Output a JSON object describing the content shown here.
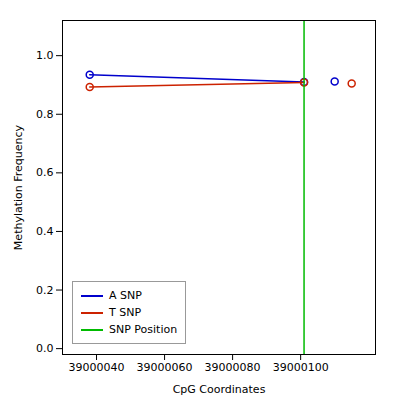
{
  "chart_data": {
    "type": "line",
    "xlabel": "CpG Coordinates",
    "ylabel": "Methylation Frequency",
    "xlim": [
      39000030,
      39000122
    ],
    "ylim": [
      -0.02,
      1.12
    ],
    "xticks": [
      39000040,
      39000060,
      39000080,
      39000100
    ],
    "yticks": [
      {
        "value": 0.0,
        "label": "0.0"
      },
      0.2,
      0.4,
      0.6,
      0.8,
      {
        "value": 1.0,
        "label": "1.0"
      }
    ],
    "legend": "lower left",
    "series": [
      {
        "name": "A SNP",
        "color": "#0000CC",
        "marker": "o",
        "x": [
          39000038,
          39000101
        ],
        "values": [
          0.935,
          0.91
        ]
      },
      {
        "name": "T SNP",
        "color": "#CC2200",
        "marker": "o",
        "x": [
          39000038,
          39000101
        ],
        "values": [
          0.893,
          0.908
        ]
      },
      {
        "type": "scatter",
        "color": "#0000CC",
        "marker": "o",
        "x": [
          39000110
        ],
        "values": [
          0.912
        ]
      },
      {
        "type": "scatter",
        "color": "#CC2200",
        "marker": "o",
        "x": [
          39000115
        ],
        "values": [
          0.905
        ]
      },
      {
        "name": "SNP Position",
        "type": "vline",
        "color": "#00BB00",
        "x": [
          39000101
        ]
      }
    ]
  }
}
